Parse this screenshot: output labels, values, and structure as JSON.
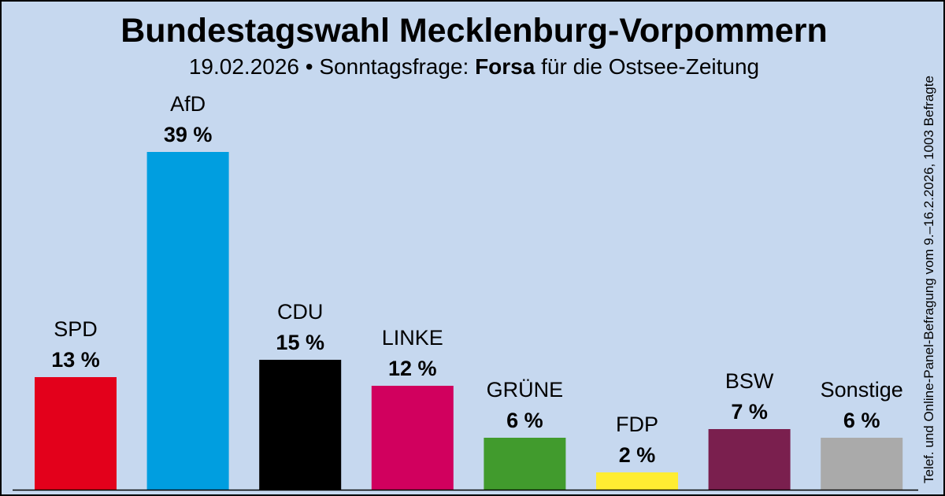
{
  "header": {
    "title": "Bundestagswahl Mecklenburg-Vorpommern",
    "date": "19.02.2026",
    "separator": "•",
    "poll_type": "Sonntagsfrage:",
    "institute": "Forsa",
    "client": "für die Ostsee-Zeitung"
  },
  "footnote": "Telef. und Online-Panel-Befragung vom 9.–16.2.2026, 1003 Befragte",
  "chart_data": {
    "type": "bar",
    "title": "Bundestagswahl Mecklenburg-Vorpommern",
    "subtitle": "19.02.2026 • Sonntagsfrage: Forsa für die Ostsee-Zeitung",
    "xlabel": "",
    "ylabel": "",
    "ylim": [
      0,
      40
    ],
    "grid": false,
    "value_suffix": " %",
    "categories": [
      "SPD",
      "AfD",
      "CDU",
      "LINKE",
      "GRÜNE",
      "FDP",
      "BSW",
      "Sonstige"
    ],
    "values": [
      13,
      39,
      15,
      12,
      6,
      2,
      7,
      6
    ],
    "colors": [
      "#e3001b",
      "#009ee0",
      "#000000",
      "#d1005e",
      "#419b2d",
      "#ffed32",
      "#7a1f4e",
      "#aaaaaa"
    ]
  }
}
